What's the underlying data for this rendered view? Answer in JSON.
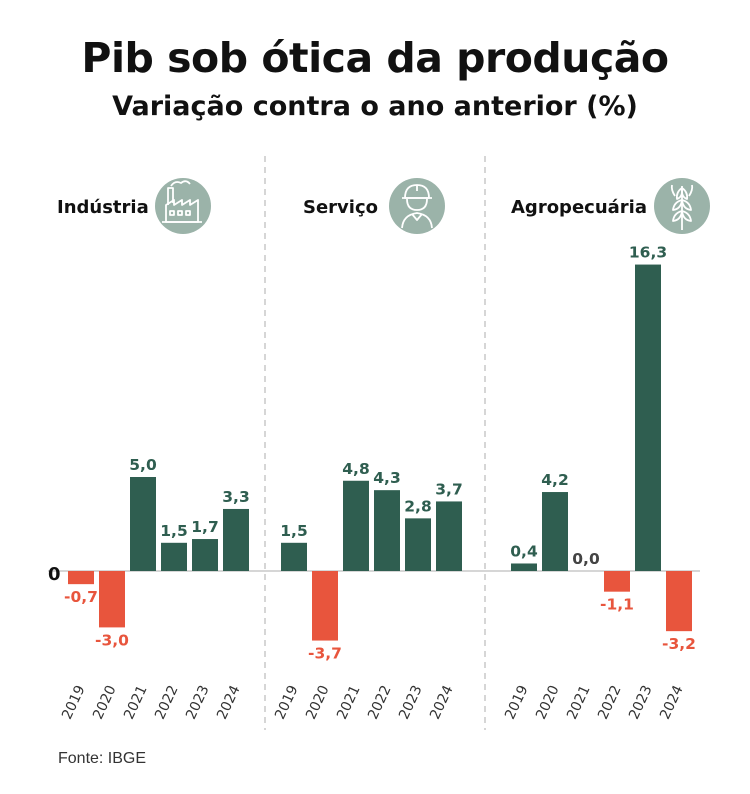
{
  "header": {
    "title": "Pib sob ótica da produção",
    "subtitle": "Variação contra o ano anterior (%)"
  },
  "source": "Fonte: IBGE",
  "zero_label": "0",
  "colors": {
    "positive": "#2f5e50",
    "negative": "#e8553d",
    "icon_bg": "#9bb3a9"
  },
  "chart_data": [
    {
      "type": "bar",
      "title": "Indústria",
      "icon": "factory-icon",
      "categories": [
        "2019",
        "2020",
        "2021",
        "2022",
        "2023",
        "2024"
      ],
      "values": [
        -0.7,
        -3.0,
        5.0,
        1.5,
        1.7,
        3.3
      ],
      "labels": [
        "-0,7",
        "-3,0",
        "5,0",
        "1,5",
        "1,7",
        "3,3"
      ]
    },
    {
      "type": "bar",
      "title": "Serviço",
      "icon": "worker-icon",
      "categories": [
        "2019",
        "2020",
        "2021",
        "2022",
        "2023",
        "2024"
      ],
      "values": [
        1.5,
        -3.7,
        4.8,
        4.3,
        2.8,
        3.7
      ],
      "labels": [
        "1,5",
        "-3,7",
        "4,8",
        "4,3",
        "2,8",
        "3,7"
      ]
    },
    {
      "type": "bar",
      "title": "Agropecuária",
      "icon": "wheat-icon",
      "categories": [
        "2019",
        "2020",
        "2021",
        "2022",
        "2023",
        "2024"
      ],
      "values": [
        0.4,
        4.2,
        0.0,
        -1.1,
        16.3,
        -3.2
      ],
      "labels": [
        "0,4",
        "4,2",
        "0,0",
        "-1,1",
        "16,3",
        "-3,2"
      ]
    }
  ]
}
